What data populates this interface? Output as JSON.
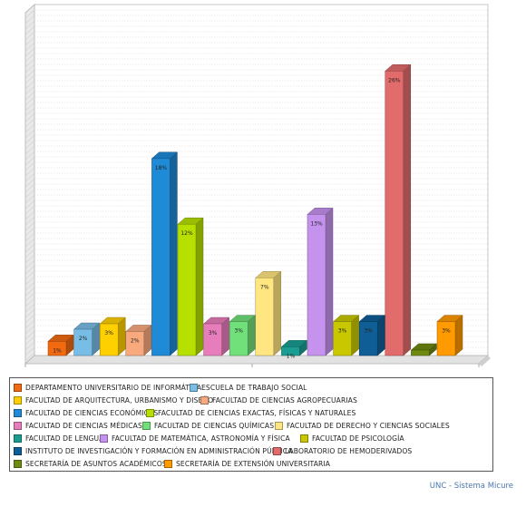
{
  "chart_data": {
    "type": "bar",
    "title": "",
    "xlabel": "",
    "ylabel": "",
    "ylim": [
      0,
      30
    ],
    "grid": true,
    "legend_position": "bottom",
    "categories": [
      "DEPARTAMENTO UNIVERSITARIO DE INFORMÁTICA",
      "ESCUELA DE TRABAJO SOCIAL",
      "FACULTAD DE ARQUITECTURA, URBANISMO Y DISEÑO",
      "FACULTAD DE CIENCIAS AGROPECUARIAS",
      "FACULTAD DE CIENCIAS ECONÓMICAS",
      "FACULTAD DE CIENCIAS EXACTAS, FÍSICAS Y NATURALES",
      "FACULTAD DE CIENCIAS MÉDICAS",
      "FACULTAD DE CIENCIAS QUÍMICAS",
      "FACULTAD DE DERECHO Y CIENCIAS SOCIALES",
      "FACULTAD DE LENGUAS",
      "FACULTAD DE MATEMÁTICA, ASTRONOMÍA Y FÍSICA",
      "FACULTAD DE PSICOLOGÍA",
      "INSTITUTO DE INVESTIGACIÓN Y FORMACIÓN EN ADMINISTRACIÓN PÚBLICA",
      "LABORATORIO DE HEMODERIVADOS",
      "SECRETARÍA DE ASUNTOS ACADÉMICOS",
      "SECRETARÍA DE EXTENSIÓN UNIVERSITARIA"
    ],
    "values": [
      1.3,
      2.4,
      2.9,
      2.2,
      18.0,
      12.0,
      2.9,
      3.1,
      7.1,
      0.8,
      12.9,
      3.1,
      3.1,
      26.0,
      0.5,
      3.1
    ],
    "data_labels": [
      "1%",
      "2%",
      "3%",
      "2%",
      "18%",
      "12%",
      "3%",
      "3%",
      "7%",
      "1%",
      "13%",
      "3%",
      "3%",
      "26%",
      "",
      "3%"
    ],
    "colors": [
      "#f26a10",
      "#78bde6",
      "#ffd000",
      "#f9a97e",
      "#1f8ad6",
      "#b7e000",
      "#e87dbb",
      "#72e07a",
      "#ffe680",
      "#1a9e92",
      "#c592ee",
      "#c9c800",
      "#0f5e96",
      "#e26c6c",
      "#6e8a10",
      "#ff9a00"
    ]
  },
  "footer": "UNC - Sistema Micure"
}
